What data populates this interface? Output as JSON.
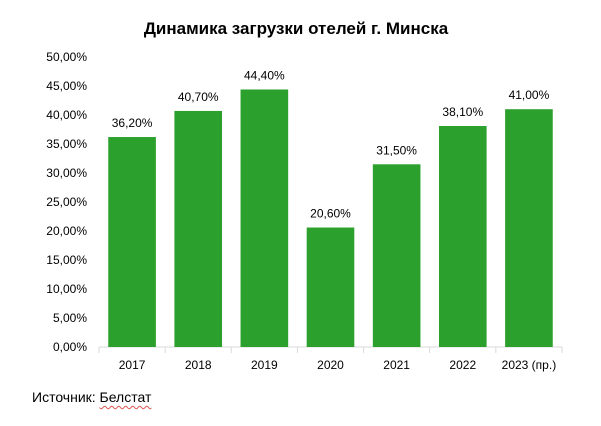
{
  "chart_data": {
    "type": "bar",
    "title": "Динамика загрузки отелей г. Минска",
    "categories": [
      "2017",
      "2018",
      "2019",
      "2020",
      "2021",
      "2022",
      "2023 (пр.)"
    ],
    "values": [
      36.2,
      40.7,
      44.4,
      20.6,
      31.5,
      38.1,
      41.0
    ],
    "data_labels": [
      "36,20%",
      "40,70%",
      "44,40%",
      "20,60%",
      "31,50%",
      "38,10%",
      "41,00%"
    ],
    "ylim": [
      0,
      50
    ],
    "yticks": [
      "0,00%",
      "5,00%",
      "10,00%",
      "15,00%",
      "20,00%",
      "25,00%",
      "30,00%",
      "35,00%",
      "40,00%",
      "45,00%",
      "50,00%"
    ],
    "xlabel": "",
    "ylabel": "",
    "grid": false,
    "legend": "none",
    "bar_color": "#2ca02c"
  },
  "source": {
    "prefix": "Источник: ",
    "name": "Белстат"
  }
}
